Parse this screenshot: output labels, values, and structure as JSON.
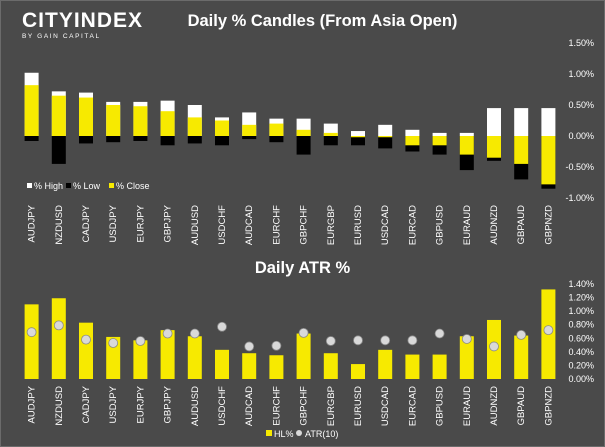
{
  "logo": {
    "main": "CITYINDEX",
    "sub": "BY GAIN CAPITAL"
  },
  "colors": {
    "background": "#4a4a4a",
    "high": "#ffffff",
    "low": "#000000",
    "close": "#f7ea00",
    "atr_marker": "#d9d9d9"
  },
  "chart_data": [
    {
      "type": "bar",
      "title": "Daily % Candles (From Asia Open)",
      "categories": [
        "AUDJPY",
        "NZDUSD",
        "CADJPY",
        "USDJPY",
        "EURJPY",
        "GBPJPY",
        "AUDUSD",
        "USDCHF",
        "AUDCAD",
        "EURCHF",
        "GBPCHF",
        "EURGBP",
        "EURUSD",
        "USDCAD",
        "EURCAD",
        "GBPUSD",
        "EURAUD",
        "AUDNZD",
        "GBPAUD",
        "GBPNZD"
      ],
      "series": [
        {
          "name": "% High",
          "values": [
            1.02,
            0.72,
            0.7,
            0.55,
            0.55,
            0.57,
            0.5,
            0.3,
            0.38,
            0.28,
            0.28,
            0.2,
            0.08,
            0.18,
            0.1,
            0.05,
            0.05,
            0.45,
            0.45,
            0.45
          ]
        },
        {
          "name": "% Low",
          "values": [
            -0.08,
            -0.45,
            -0.12,
            -0.1,
            -0.08,
            -0.15,
            -0.12,
            -0.15,
            -0.05,
            -0.1,
            -0.3,
            -0.15,
            -0.15,
            -0.2,
            -0.25,
            -0.3,
            -0.55,
            -0.4,
            -0.7,
            -0.85
          ]
        },
        {
          "name": "% Close",
          "values": [
            0.82,
            0.65,
            0.62,
            0.5,
            0.48,
            0.4,
            0.3,
            0.25,
            0.18,
            0.2,
            0.1,
            0.05,
            -0.02,
            -0.02,
            -0.15,
            -0.15,
            -0.3,
            -0.35,
            -0.45,
            -0.78
          ]
        }
      ],
      "y_ticks": [
        "1.50%",
        "1.00%",
        "0.50%",
        "0.00%",
        "-0.50%",
        "-1.00%"
      ],
      "ylim": [
        -1.0,
        1.5
      ],
      "legend": {
        "placement": "bottom-left",
        "labels": [
          "% High",
          "% Low",
          "% Close"
        ]
      }
    },
    {
      "type": "bar",
      "title": "Daily ATR %",
      "categories": [
        "AUDJPY",
        "NZDUSD",
        "CADJPY",
        "USDJPY",
        "EURJPY",
        "GBPJPY",
        "AUDUSD",
        "USDCHF",
        "AUDCAD",
        "EURCHF",
        "GBPCHF",
        "EURGBP",
        "EURUSD",
        "USDCAD",
        "EURCAD",
        "GBPUSD",
        "EURAUD",
        "AUDNZD",
        "GBPAUD",
        "GBPNZD"
      ],
      "series": [
        {
          "name": "HL%",
          "values": [
            1.1,
            1.19,
            0.83,
            0.62,
            0.57,
            0.72,
            0.63,
            0.43,
            0.38,
            0.35,
            0.67,
            0.38,
            0.22,
            0.43,
            0.36,
            0.36,
            0.63,
            0.87,
            0.64,
            1.32
          ]
        },
        {
          "name": "ATR(10)",
          "values": [
            0.69,
            0.79,
            0.58,
            0.53,
            0.56,
            0.67,
            0.67,
            0.77,
            0.48,
            0.49,
            0.68,
            0.56,
            0.57,
            0.57,
            0.57,
            0.67,
            0.59,
            0.48,
            0.65,
            0.72
          ]
        }
      ],
      "y_ticks": [
        "1.40%",
        "1.20%",
        "1.00%",
        "0.80%",
        "0.60%",
        "0.40%",
        "0.20%",
        "0.00%"
      ],
      "ylim": [
        0,
        1.4
      ],
      "legend": {
        "placement": "bottom-center",
        "labels": [
          "HL%",
          "ATR(10)"
        ]
      }
    }
  ]
}
